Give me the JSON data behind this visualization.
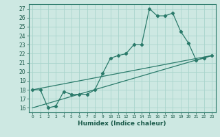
{
  "xlabel": "Humidex (Indice chaleur)",
  "xlim": [
    -0.5,
    23.5
  ],
  "ylim": [
    15.5,
    27.5
  ],
  "xticks": [
    0,
    1,
    2,
    3,
    4,
    5,
    6,
    7,
    8,
    9,
    10,
    11,
    12,
    13,
    14,
    15,
    16,
    17,
    18,
    19,
    20,
    21,
    22,
    23
  ],
  "yticks": [
    16,
    17,
    18,
    19,
    20,
    21,
    22,
    23,
    24,
    25,
    26,
    27
  ],
  "bg_color": "#cde8e2",
  "grid_color": "#a8d4cc",
  "line_color": "#2a7a6a",
  "line1_x": [
    0,
    1,
    2,
    3,
    4,
    5,
    6,
    7,
    8,
    9,
    10,
    11,
    12,
    13,
    14,
    15,
    16,
    17,
    18,
    19,
    20,
    21,
    22,
    23
  ],
  "line1_y": [
    18.0,
    18.0,
    16.0,
    16.2,
    17.8,
    17.5,
    17.5,
    17.5,
    18.0,
    19.8,
    21.5,
    21.8,
    22.0,
    23.0,
    23.0,
    27.0,
    26.2,
    26.2,
    26.5,
    24.5,
    23.2,
    21.3,
    21.5,
    21.8
  ],
  "line2_x": [
    0,
    23
  ],
  "line2_y": [
    18.0,
    21.8
  ],
  "line3_x": [
    0,
    23
  ],
  "line3_y": [
    16.0,
    21.8
  ]
}
